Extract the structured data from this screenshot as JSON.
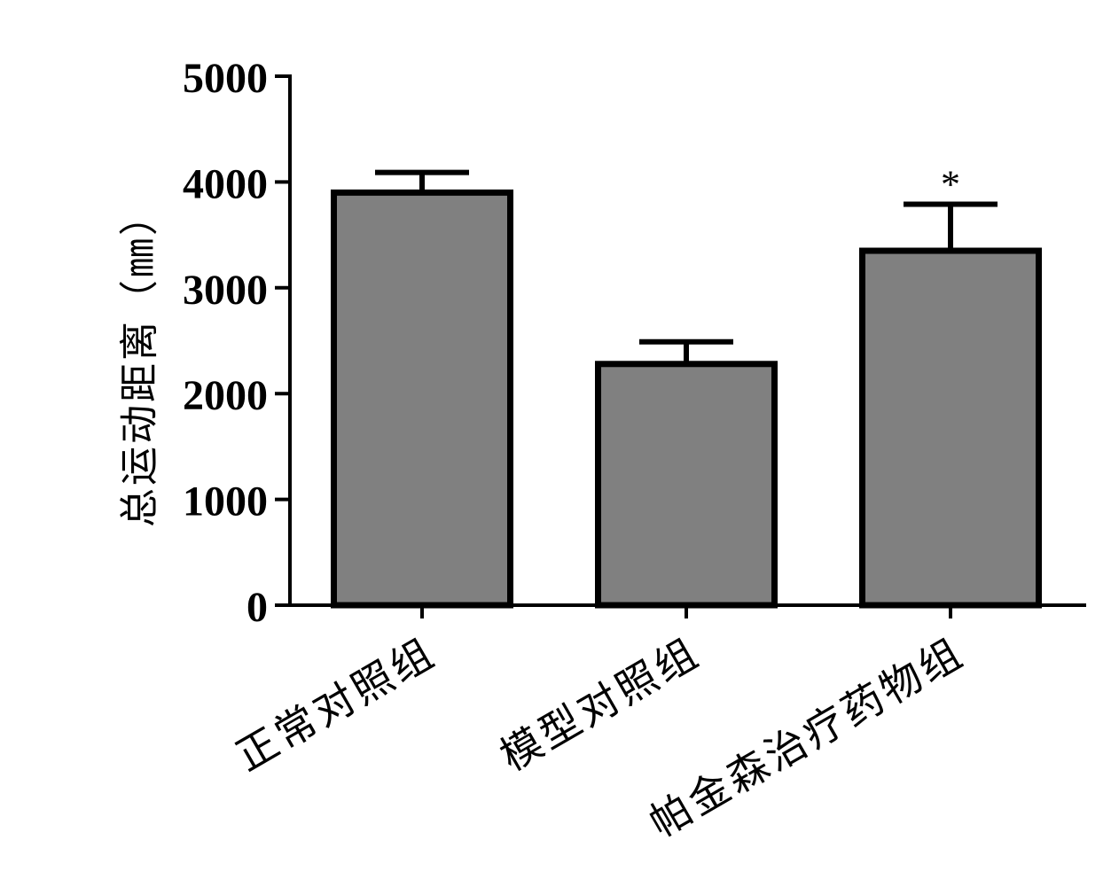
{
  "chart_data": {
    "type": "bar",
    "categories": [
      "正常对照组",
      "模型对照组",
      "帕金森治疗药物组"
    ],
    "values": [
      3900,
      2280,
      3350
    ],
    "error_bars": [
      190,
      210,
      440
    ],
    "annotations": [
      "",
      "",
      "*"
    ],
    "ylabel": "总运动距离（㎜）",
    "ylim": [
      0,
      5000
    ],
    "yticks": [
      0,
      1000,
      2000,
      3000,
      4000,
      5000
    ],
    "grid": false,
    "colors": {
      "bar_fill": "#808080",
      "bar_edge": "#000000",
      "axis": "#000000"
    }
  }
}
